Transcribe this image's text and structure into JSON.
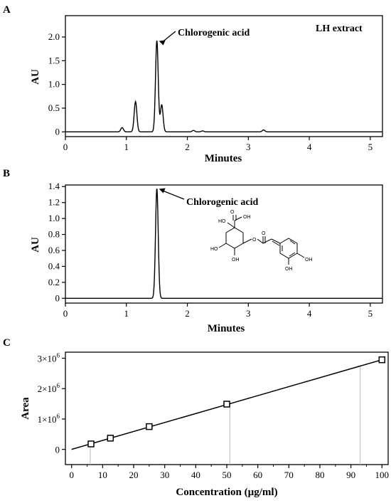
{
  "figure": {
    "panels": {
      "a": "A",
      "b": "B",
      "c": "C"
    }
  },
  "chart_data": [
    {
      "type": "line",
      "panel": "A",
      "xlabel": "Minutes",
      "ylabel": "AU",
      "xlim": [
        0,
        5.2
      ],
      "ylim": [
        -0.1,
        2.45
      ],
      "xticks": [
        0,
        1,
        2,
        3,
        4,
        5
      ],
      "yticks": [
        0,
        0.5,
        1.0,
        1.5,
        2.0
      ],
      "ytick_labels": [
        "0",
        "0.5",
        "1.0",
        "1.5",
        "2.0"
      ],
      "series_label": "LH extract",
      "annotation": {
        "text": "Chlorogenic acid",
        "x": 1.5,
        "y": 1.93
      },
      "peaks": [
        {
          "x": 0.93,
          "y": 0.09
        },
        {
          "x": 1.15,
          "y": 0.64
        },
        {
          "x": 1.5,
          "y": 1.93
        },
        {
          "x": 1.58,
          "y": 0.57
        },
        {
          "x": 2.1,
          "y": 0.03
        },
        {
          "x": 2.25,
          "y": 0.02
        },
        {
          "x": 3.25,
          "y": 0.04
        }
      ]
    },
    {
      "type": "line",
      "panel": "B",
      "xlabel": "Minutes",
      "ylabel": "AU",
      "xlim": [
        0,
        5.2
      ],
      "ylim": [
        -0.06,
        1.42
      ],
      "xticks": [
        0,
        1,
        2,
        3,
        4,
        5
      ],
      "yticks": [
        0,
        0.2,
        0.4,
        0.6,
        0.8,
        1.0,
        1.2,
        1.4
      ],
      "ytick_labels": [
        "0",
        "0.2",
        "0.4",
        "0.6",
        "0.8",
        "1.0",
        "1.2",
        "1.4"
      ],
      "annotation": {
        "text": "Chlorogenic acid",
        "x": 1.5,
        "y": 1.38
      },
      "peaks": [
        {
          "x": 1.5,
          "y": 1.38
        }
      ],
      "structure_labels": [
        "O",
        "OH",
        "HO",
        "O",
        "HO",
        "O",
        "OH",
        "OH",
        "OH"
      ]
    },
    {
      "type": "scatter",
      "panel": "C",
      "xlabel": "Concentration (µg/ml)",
      "ylabel": "Area",
      "xlim": [
        -2,
        102
      ],
      "ylim": [
        -500000,
        3200000
      ],
      "xticks": [
        0,
        10,
        20,
        30,
        40,
        50,
        60,
        70,
        80,
        90,
        100
      ],
      "yticks": [
        0,
        1000000,
        2000000,
        3000000
      ],
      "ytick_labels": [
        {
          "base": "0",
          "exp": ""
        },
        {
          "base": "1×10",
          "exp": "6"
        },
        {
          "base": "2×10",
          "exp": "6"
        },
        {
          "base": "3×10",
          "exp": "6"
        }
      ],
      "x": [
        6.25,
        12.5,
        25,
        50,
        100
      ],
      "y": [
        180000,
        370000,
        750000,
        1490000,
        2950000
      ],
      "fit": {
        "x": [
          0,
          100
        ],
        "y": [
          0,
          2950000
        ]
      },
      "guides_x": [
        6,
        51,
        93
      ]
    }
  ]
}
